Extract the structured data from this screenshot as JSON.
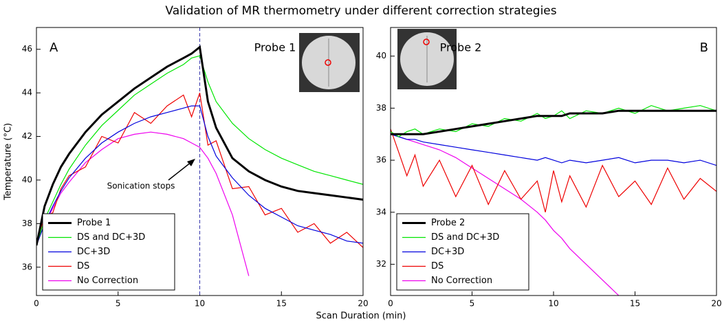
{
  "title": "Validation of MR thermometry under different correction strategies",
  "x_label": "Scan Duration (min)",
  "y_label": "Temperature (°C)",
  "chart_data": [
    {
      "type": "line",
      "panel_label": "A",
      "annotation": "Probe 1",
      "arrow_note": "Sonication stops",
      "vline": 10,
      "legend": "lower left",
      "x": [
        0,
        0.5,
        1,
        1.5,
        2,
        3,
        4,
        5,
        6,
        7,
        8,
        9,
        9.5,
        10,
        10.5,
        11,
        12,
        13,
        14,
        15,
        16,
        17,
        18,
        19,
        20
      ],
      "xlim": [
        0,
        20
      ],
      "xticks": [
        0,
        5,
        10,
        15,
        20
      ],
      "ylim": [
        34.7,
        47.0
      ],
      "yticks": [
        36,
        38,
        40,
        42,
        44,
        46
      ],
      "series": [
        {
          "name": "Probe 1",
          "color": "#000000",
          "values": [
            37,
            38.8,
            39.8,
            40.6,
            41.2,
            42.2,
            43,
            43.6,
            44.2,
            44.7,
            45.2,
            45.6,
            45.8,
            46.1,
            43.6,
            42.4,
            41,
            40.4,
            40,
            39.7,
            39.5,
            39.4,
            39.3,
            39.2,
            39.1
          ]
        },
        {
          "name": "DS and DC+3D",
          "color": "#00e600",
          "values": [
            37,
            38.2,
            39,
            39.8,
            40.5,
            41.6,
            42.5,
            43.2,
            43.9,
            44.4,
            44.9,
            45.3,
            45.6,
            45.7,
            44.5,
            43.6,
            42.6,
            41.9,
            41.4,
            41,
            40.7,
            40.4,
            40.2,
            40,
            39.8
          ]
        },
        {
          "name": "DC+3D",
          "color": "#0000dd",
          "values": [
            37,
            38,
            38.8,
            39.5,
            40.1,
            41,
            41.7,
            42.2,
            42.6,
            42.9,
            43.1,
            43.3,
            43.4,
            43.4,
            42,
            41.1,
            40.1,
            39.3,
            38.7,
            38.3,
            37.9,
            37.7,
            37.5,
            37.2,
            37.1
          ]
        },
        {
          "name": "DS",
          "color": "#ee0000",
          "values": [
            37.2,
            38.3,
            38.5,
            39.6,
            40.2,
            40.6,
            42,
            41.7,
            43.1,
            42.6,
            43.4,
            43.9,
            42.9,
            44,
            41.6,
            41.8,
            39.6,
            39.7,
            38.4,
            38.7,
            37.6,
            38,
            37.1,
            37.6,
            36.9
          ]
        },
        {
          "name": "No Correction",
          "color": "#ee00ee",
          "values": [
            37,
            38,
            38.7,
            39.4,
            39.9,
            40.8,
            41.4,
            41.9,
            42.1,
            42.2,
            42.1,
            41.9,
            41.7,
            41.5,
            41,
            40.3,
            38.4,
            35.6,
            null,
            null,
            null,
            null,
            null,
            null,
            null
          ]
        }
      ]
    },
    {
      "type": "line",
      "panel_label": "B",
      "annotation": "Probe 2",
      "legend": "lower left",
      "x": [
        0,
        0.5,
        1,
        1.5,
        2,
        3,
        4,
        5,
        6,
        7,
        8,
        9,
        9.5,
        10,
        10.5,
        11,
        12,
        13,
        14,
        15,
        16,
        17,
        18,
        19,
        20
      ],
      "xlim": [
        0,
        20
      ],
      "xticks": [
        0,
        5,
        10,
        15,
        20
      ],
      "ylim": [
        30.8,
        41.1
      ],
      "yticks": [
        32,
        34,
        36,
        38,
        40
      ],
      "series": [
        {
          "name": "Probe 2",
          "color": "#000000",
          "values": [
            37,
            37,
            37,
            37,
            37,
            37.1,
            37.2,
            37.3,
            37.4,
            37.5,
            37.6,
            37.7,
            37.7,
            37.7,
            37.7,
            37.8,
            37.8,
            37.8,
            37.9,
            37.9,
            37.9,
            37.9,
            37.9,
            37.9,
            37.9
          ]
        },
        {
          "name": "DS and DC+3D",
          "color": "#00e600",
          "values": [
            37.1,
            36.9,
            37.1,
            37.2,
            37,
            37.2,
            37.1,
            37.4,
            37.3,
            37.6,
            37.5,
            37.8,
            37.6,
            37.7,
            37.9,
            37.6,
            37.9,
            37.8,
            38,
            37.8,
            38.1,
            37.9,
            38,
            38.1,
            37.9
          ]
        },
        {
          "name": "DC+3D",
          "color": "#0000dd",
          "values": [
            37,
            36.9,
            36.8,
            36.8,
            36.7,
            36.6,
            36.5,
            36.4,
            36.3,
            36.2,
            36.1,
            36,
            36.1,
            36,
            35.9,
            36,
            35.9,
            36,
            36.1,
            35.9,
            36,
            36,
            35.9,
            36,
            35.8
          ]
        },
        {
          "name": "DS",
          "color": "#ee0000",
          "values": [
            37.2,
            36.3,
            35.4,
            36.2,
            35,
            36,
            34.6,
            35.8,
            34.3,
            35.6,
            34.5,
            35.2,
            34,
            35.6,
            34.4,
            35.4,
            34.2,
            35.8,
            34.6,
            35.2,
            34.3,
            35.7,
            34.5,
            35.3,
            34.8
          ]
        },
        {
          "name": "No Correction",
          "color": "#ee00ee",
          "values": [
            37,
            36.9,
            36.8,
            36.7,
            36.6,
            36.4,
            36.1,
            35.7,
            35.3,
            34.9,
            34.5,
            34,
            33.7,
            33.3,
            33,
            32.6,
            32,
            31.4,
            30.8,
            null,
            null,
            null,
            null,
            null,
            null
          ]
        }
      ]
    }
  ]
}
